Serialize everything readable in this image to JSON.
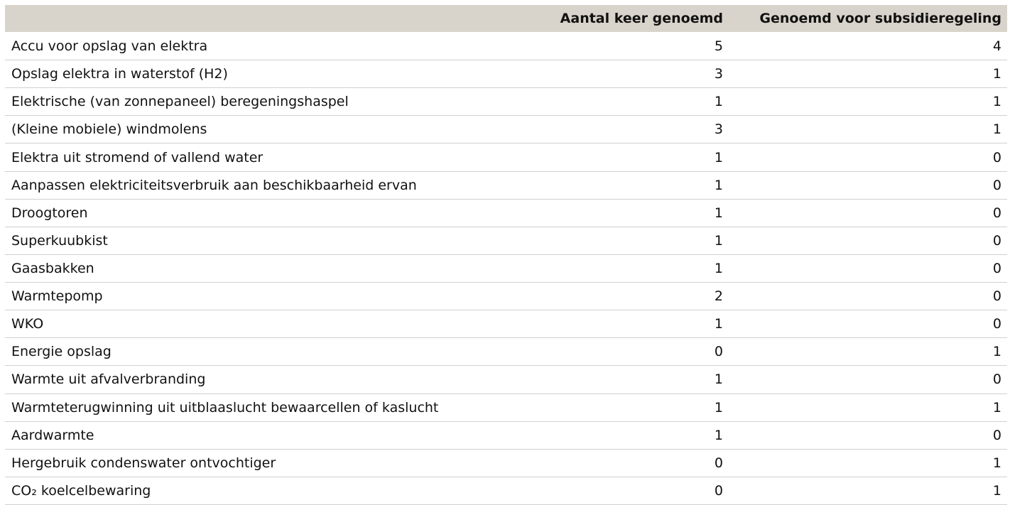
{
  "table": {
    "columns": [
      "Aantal keer genoemd",
      "Genoemd voor subsidieregeling"
    ],
    "rows": [
      [
        "Accu voor opslag van elektra",
        5,
        4
      ],
      [
        "Opslag elektra in waterstof (H2)",
        3,
        1
      ],
      [
        "Elektrische (van zonnepaneel) beregeningshaspel",
        1,
        1
      ],
      [
        "(Kleine mobiele) windmolens",
        3,
        1
      ],
      [
        "Elektra uit stromend of vallend water",
        1,
        0
      ],
      [
        "Aanpassen elektriciteitsverbruik aan beschikbaarheid ervan",
        1,
        0
      ],
      [
        "Droogtoren",
        1,
        0
      ],
      [
        "Superkuubkist",
        1,
        0
      ],
      [
        "Gaasbakken",
        1,
        0
      ],
      [
        "Warmtepomp",
        2,
        0
      ],
      [
        "WKO",
        1,
        0
      ],
      [
        "Energie opslag",
        0,
        1
      ],
      [
        "Warmte uit afvalverbranding",
        1,
        0
      ],
      [
        "Warmteterugwinning uit uitblaaslucht bewaarcellen of kaslucht",
        1,
        1
      ],
      [
        "Aardwarmte",
        1,
        0
      ],
      [
        "Hergebruik condenswater ontvochtiger",
        0,
        1
      ],
      [
        "CO₂ koelcelbewaring",
        0,
        1
      ]
    ]
  }
}
